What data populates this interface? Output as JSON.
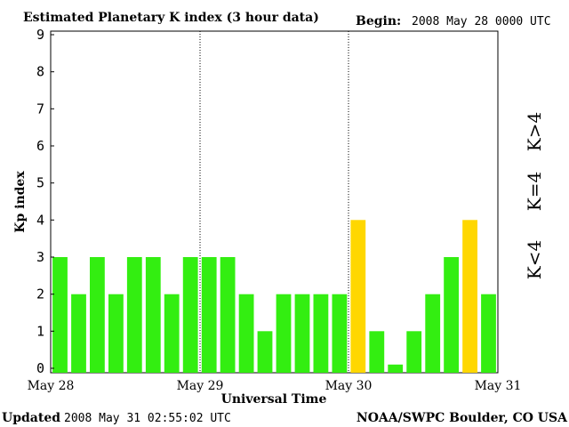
{
  "chart_data": {
    "type": "bar",
    "title": "Estimated Planetary K index (3 hour data)",
    "begin_label": "Begin:",
    "begin_value": "2008 May 28 0000 UTC",
    "xlabel": "Universal Time",
    "ylabel": "Kp index",
    "ylim": [
      0,
      9
    ],
    "yticks": [
      "0",
      "1",
      "2",
      "3",
      "4",
      "5",
      "6",
      "7",
      "8",
      "9"
    ],
    "day_labels": [
      "May 28",
      "May 29",
      "May 30",
      "May 31"
    ],
    "values": [
      3,
      2,
      3,
      2,
      3,
      3,
      2,
      3,
      3,
      3,
      2,
      1,
      2,
      2,
      2,
      2,
      4,
      1,
      0.1,
      1,
      2,
      3,
      4,
      2
    ],
    "thresholds": {
      "low": {
        "label": "K<4",
        "color": "#33ee11"
      },
      "equal": {
        "label": "K=4",
        "color": "#ffd700"
      },
      "high": {
        "label": "K>4",
        "color": "#ee2200"
      }
    },
    "grid": false,
    "legend": "right"
  },
  "footer": {
    "updated_label": "Updated",
    "updated_value": "2008 May 31 02:55:02 UTC",
    "source": "NOAA/SWPC Boulder, CO USA"
  }
}
